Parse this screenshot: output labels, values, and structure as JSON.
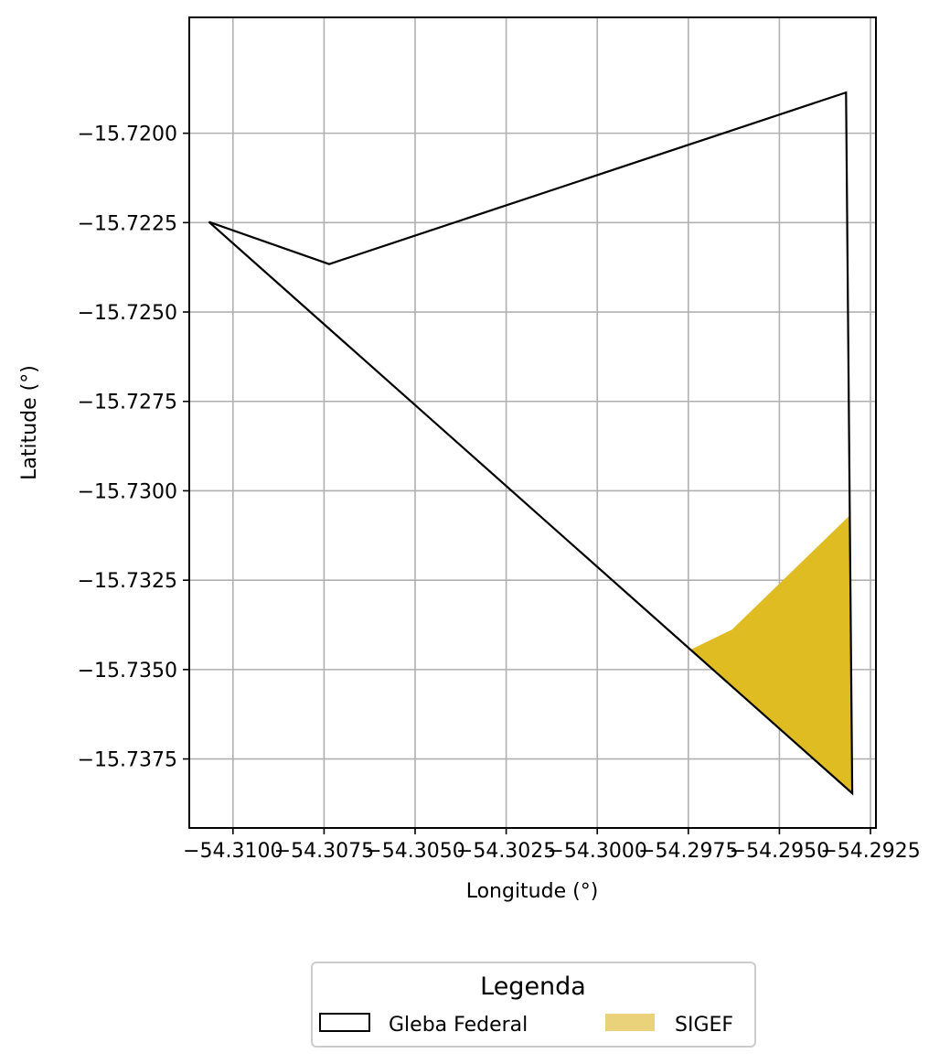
{
  "chart_data": {
    "type": "map",
    "xlabel": "Longitude (°)",
    "ylabel": "Latitude (°)",
    "xlim": [
      -54.3112,
      -54.29235
    ],
    "ylim": [
      -15.73943,
      -15.71676
    ],
    "grid": true,
    "xticks": [
      -54.31,
      -54.3075,
      -54.305,
      -54.3025,
      -54.3,
      -54.2975,
      -54.295,
      -54.2925
    ],
    "xtick_labels": [
      "−54.3100",
      "−54.3075",
      "−54.3050",
      "−54.3025",
      "−54.3000",
      "−54.2975",
      "−54.2950",
      "−54.2925"
    ],
    "yticks": [
      -15.72,
      -15.7225,
      -15.725,
      -15.7275,
      -15.73,
      -15.7325,
      -15.735,
      -15.7375
    ],
    "ytick_labels": [
      "−15.7200",
      "−15.7225",
      "−15.7250",
      "−15.7275",
      "−15.7300",
      "−15.7325",
      "−15.7350",
      "−15.7375"
    ],
    "layers": [
      {
        "name": "Gleba Federal",
        "style": "outline",
        "edge_color": "#000000",
        "fill_color": "none",
        "coords": [
          [
            -54.31066,
            -15.72248
          ],
          [
            -54.30736,
            -15.72366
          ],
          [
            -54.29317,
            -15.71886
          ],
          [
            -54.293,
            -15.73846
          ],
          [
            -54.31066,
            -15.72248
          ]
        ]
      },
      {
        "name": "SIGEF",
        "style": "fill",
        "fill_color": "#dfbc21",
        "legend_color": "#ead27a",
        "coords": [
          [
            -54.29745,
            -15.73445
          ],
          [
            -54.2963,
            -15.73388
          ],
          [
            -54.29308,
            -15.7307
          ],
          [
            -54.293,
            -15.73846
          ],
          [
            -54.29745,
            -15.73445
          ]
        ]
      }
    ],
    "legend": {
      "title": "Legenda",
      "placement": "bottom-center",
      "entries": [
        "Gleba Federal",
        "SIGEF"
      ]
    }
  }
}
